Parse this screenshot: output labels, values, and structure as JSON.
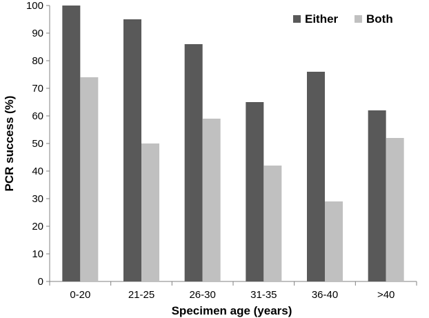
{
  "chart_data": {
    "type": "bar",
    "title": "",
    "xlabel": "Specimen age (years)",
    "ylabel": "PCR success (%)",
    "categories": [
      "0-20",
      "21-25",
      "26-30",
      "31-35",
      "36-40",
      ">40"
    ],
    "ylim": [
      0,
      100
    ],
    "yticks": [
      0,
      10,
      20,
      30,
      40,
      50,
      60,
      70,
      80,
      90,
      100
    ],
    "grid": false,
    "legend_position": "top-right",
    "series": [
      {
        "name": "Either",
        "color": "#595959",
        "values": [
          100,
          95,
          86,
          65,
          76,
          62
        ]
      },
      {
        "name": "Both",
        "color": "#c0c0c0",
        "values": [
          74,
          50,
          59,
          42,
          29,
          52
        ]
      }
    ]
  }
}
